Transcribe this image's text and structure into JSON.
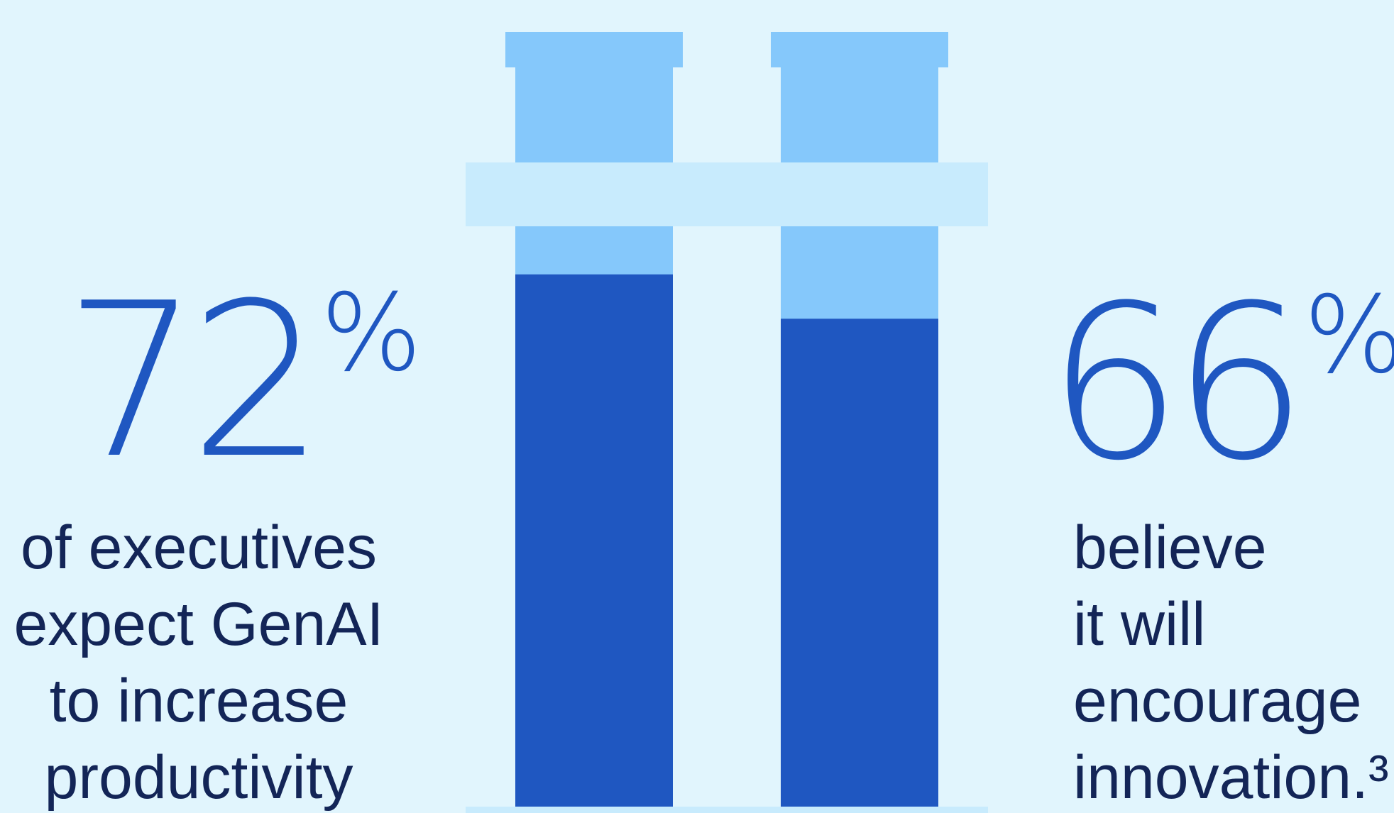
{
  "colors": {
    "background": "#e1f5fd",
    "tube_empty": "#85c8fb",
    "tube_fill": "#1f57c1",
    "tube_band": "#c8ebfd",
    "number_text": "#1f57c1",
    "caption_text": "#132557"
  },
  "stats": [
    {
      "number": "72",
      "symbol": "%",
      "lines": [
        "of executives",
        "expect GenAI",
        "to increase",
        "productivity"
      ]
    },
    {
      "number": "66",
      "symbol": "%",
      "lines": [
        "believe",
        "it will",
        "encourage",
        "innovation.³"
      ]
    }
  ],
  "chart_data": {
    "type": "bar",
    "categories": [
      "",
      ""
    ],
    "values": [
      72,
      66
    ],
    "ylim": [
      0,
      100
    ],
    "grid": false,
    "legend": "none",
    "style": "test-tube fill gauge"
  }
}
